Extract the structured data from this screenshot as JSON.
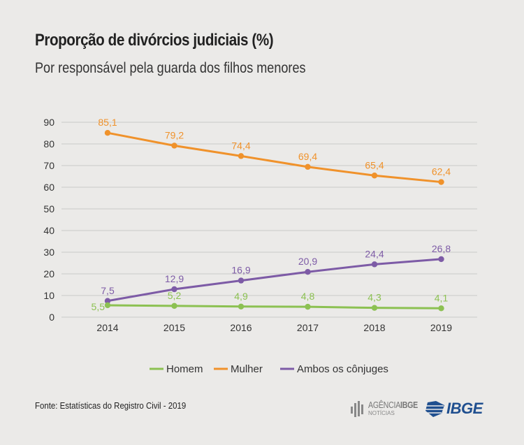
{
  "title": "Proporção de divórcios judiciais (%)",
  "subtitle": "Por responsável pela guarda dos filhos menores",
  "source": "Fonte: Estatísticas do Registro Civil - 2019",
  "branding": {
    "agencia_prefix": "AGÊNCIA",
    "agencia_bold": "IBGE",
    "agencia_sub": "NOTÍCIAS",
    "ibge": "IBGE"
  },
  "chart_data": {
    "type": "line",
    "title": "Proporção de divórcios judiciais (%)",
    "subtitle": "Por responsável pela guarda dos filhos menores",
    "xlabel": "",
    "ylabel": "",
    "x": [
      "2014",
      "2015",
      "2016",
      "2017",
      "2018",
      "2019"
    ],
    "yticks": [
      0,
      10,
      20,
      30,
      40,
      50,
      60,
      70,
      80,
      90
    ],
    "ylim": [
      0,
      90
    ],
    "grid": true,
    "legend_position": "bottom",
    "series": [
      {
        "name": "Homem",
        "color": "#8cc152",
        "values": [
          5.5,
          5.2,
          4.9,
          4.8,
          4.3,
          4.1
        ],
        "labels": [
          "5,5",
          "5,2",
          "4,9",
          "4,8",
          "4,3",
          "4,1"
        ]
      },
      {
        "name": "Mulher",
        "color": "#f0922b",
        "values": [
          85.1,
          79.2,
          74.4,
          69.4,
          65.4,
          62.4
        ],
        "labels": [
          "85,1",
          "79,2",
          "74,4",
          "69,4",
          "65,4",
          "62,4"
        ]
      },
      {
        "name": "Ambos os cônjuges",
        "color": "#7d5ba6",
        "values": [
          7.5,
          12.9,
          16.9,
          20.9,
          24.4,
          26.8
        ],
        "labels": [
          "7,5",
          "12,9",
          "16,9",
          "20,9",
          "24,4",
          "26,8"
        ]
      }
    ]
  }
}
